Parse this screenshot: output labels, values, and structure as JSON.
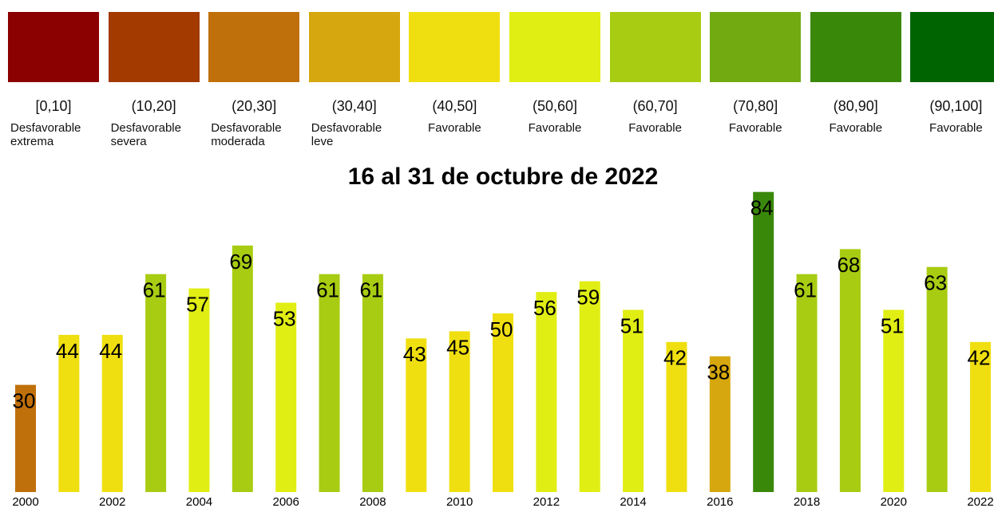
{
  "chart_data": {
    "type": "bar",
    "title": "16 al 31 de octubre de 2022",
    "legend": [
      {
        "range": "[0,10]",
        "label": "Desfavorable extrema",
        "color": "#8b0000"
      },
      {
        "range": "(10,20]",
        "label": "Desfavorable severa",
        "color": "#a33a00"
      },
      {
        "range": "(20,30]",
        "label": "Desfavorable moderada",
        "color": "#c0700a"
      },
      {
        "range": "(30,40]",
        "label": "Desfavorable leve",
        "color": "#d6a70e"
      },
      {
        "range": "(40,50]",
        "label": "Favorable",
        "color": "#f0df10"
      },
      {
        "range": "(50,60]",
        "label": "Favorable",
        "color": "#e0ee14"
      },
      {
        "range": "(60,70]",
        "label": "Favorable",
        "color": "#a8cc12"
      },
      {
        "range": "(70,80]",
        "label": "Favorable",
        "color": "#72aa12"
      },
      {
        "range": "(80,90]",
        "label": "Favorable",
        "color": "#3a880a"
      },
      {
        "range": "(90,100]",
        "label": "Favorable",
        "color": "#006400"
      }
    ],
    "categories": [
      "2000",
      null,
      "2002",
      null,
      "2004",
      null,
      "2006",
      null,
      "2008",
      null,
      "2010",
      null,
      "2012",
      null,
      "2014",
      null,
      "2016",
      null,
      "2018",
      null,
      "2020",
      null,
      "2022"
    ],
    "values": [
      30,
      44,
      44,
      61,
      57,
      69,
      53,
      61,
      61,
      43,
      45,
      50,
      56,
      59,
      51,
      42,
      38,
      84,
      61,
      68,
      51,
      63,
      42
    ],
    "colors": [
      "#c0700a",
      "#f0df10",
      "#f0df10",
      "#a8cc12",
      "#e0ee14",
      "#a8cc12",
      "#e0ee14",
      "#a8cc12",
      "#a8cc12",
      "#f0df10",
      "#f0df10",
      "#f0df10",
      "#e0ee14",
      "#e0ee14",
      "#e0ee14",
      "#f0df10",
      "#d6a70e",
      "#3a880a",
      "#a8cc12",
      "#a8cc12",
      "#e0ee14",
      "#a8cc12",
      "#f0df10"
    ],
    "ylim": [
      0,
      100
    ]
  }
}
